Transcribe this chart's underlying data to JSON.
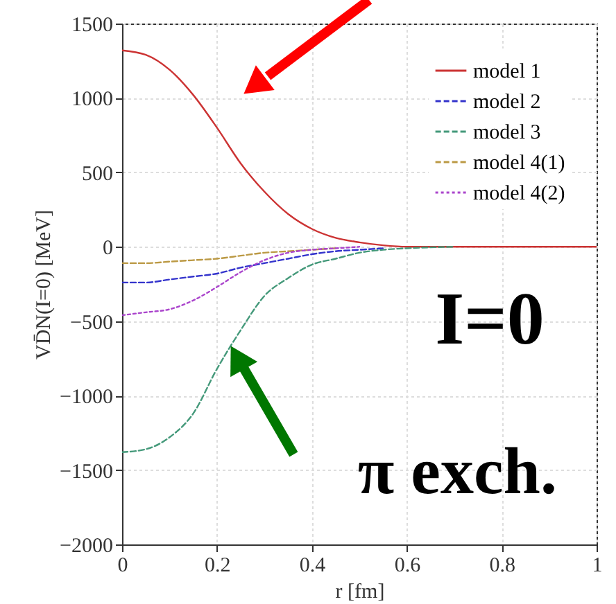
{
  "chart_data": {
    "type": "line",
    "xlabel": "r [fm]",
    "ylabel": "VD̄N(I=0) [MeV]",
    "x": [
      0,
      0.05,
      0.1,
      0.15,
      0.2,
      0.25,
      0.3,
      0.35,
      0.4,
      0.45,
      0.5,
      0.55,
      0.6,
      0.7,
      0.8,
      0.9,
      1.0
    ],
    "series": [
      {
        "name": "model 1",
        "color": "#cc3333",
        "line_style": "solid",
        "values": [
          1320,
          1290,
          1190,
          1020,
          800,
          560,
          370,
          220,
          120,
          60,
          30,
          10,
          0,
          0,
          0,
          0,
          0
        ]
      },
      {
        "name": "model 2",
        "color": "#3333cc",
        "line_style": "dashed",
        "values": [
          -240,
          -240,
          -220,
          -200,
          -180,
          -140,
          -110,
          -80,
          -50,
          -30,
          -20,
          -10,
          null,
          null,
          null,
          null,
          null
        ]
      },
      {
        "name": "model 3",
        "color": "#44997a",
        "line_style": "dashed",
        "values": [
          -1380,
          -1360,
          -1280,
          -1120,
          -820,
          -560,
          -330,
          -210,
          -120,
          -80,
          -40,
          -20,
          -10,
          0,
          null,
          null,
          null
        ]
      },
      {
        "name": "model 4(1)",
        "color": "#bb9944",
        "line_style": "dashed",
        "values": [
          -110,
          -110,
          -100,
          -90,
          -80,
          -60,
          -40,
          -30,
          -20,
          -10,
          null,
          null,
          null,
          null,
          null,
          null,
          null
        ]
      },
      {
        "name": "model 4(2)",
        "color": "#aa44cc",
        "line_style": "dotted",
        "values": [
          -460,
          -440,
          -420,
          -360,
          -270,
          -170,
          -90,
          -40,
          -20,
          -10,
          0,
          null,
          null,
          null,
          null,
          null,
          null
        ]
      }
    ],
    "xlim": [
      0,
      1
    ],
    "xticks": [
      0,
      0.2,
      0.4,
      0.6,
      0.8,
      1
    ],
    "ylim": [
      -2000,
      1500
    ],
    "yticks": [
      -2000,
      -1500,
      -1000,
      -500,
      0,
      500,
      1000,
      1500
    ],
    "annotations": [
      "I=0",
      {
        "text": "π exch.",
        "x": 0.23,
        "y": -650
      }
    ],
    "grid": true,
    "legend": "top right"
  }
}
